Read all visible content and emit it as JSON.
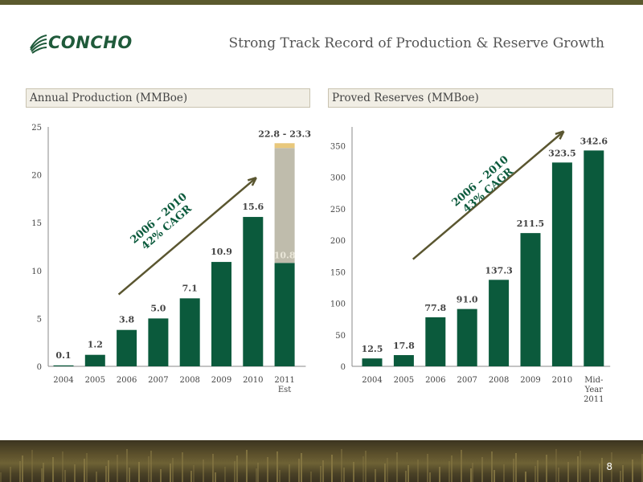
{
  "header": {
    "logo_text": "CONCHO",
    "title": "Strong Track Record of Production & Reserve Growth"
  },
  "page_number": "8",
  "colors": {
    "bar": "#0b5a3c",
    "top_range": "#e8c87c",
    "range_bar": "#bfbcac",
    "arrow": "#5a5630",
    "panel_head_bg": "#f1eee5"
  },
  "chart_data": [
    {
      "type": "bar",
      "title": "Annual Production (MMBoe)",
      "categories": [
        "2004",
        "2005",
        "2006",
        "2007",
        "2008",
        "2009",
        "2010",
        "2011 Est"
      ],
      "category_lines": [
        [
          "2004"
        ],
        [
          "2005"
        ],
        [
          "2006"
        ],
        [
          "2007"
        ],
        [
          "2008"
        ],
        [
          "2009"
        ],
        [
          "2010"
        ],
        [
          "2011",
          "Est"
        ]
      ],
      "values": [
        0.1,
        1.2,
        3.8,
        5.0,
        7.1,
        10.9,
        15.6,
        10.8
      ],
      "value_labels": [
        "0.1",
        "1.2",
        "3.8",
        "5.0",
        "7.1",
        "10.9",
        "15.6",
        "10.8"
      ],
      "range_top": {
        "category": "2011 Est",
        "low": 22.8,
        "high": 23.3,
        "label": "22.8 - 23.3"
      },
      "ylim": [
        0,
        25
      ],
      "yticks": [
        0,
        5,
        10,
        15,
        20,
        25
      ],
      "annotation": {
        "lines": [
          "2006 – 2010",
          "42% CAGR"
        ]
      },
      "grid": false
    },
    {
      "type": "bar",
      "title": "Proved Reserves (MMBoe)",
      "categories": [
        "2004",
        "2005",
        "2006",
        "2007",
        "2008",
        "2009",
        "2010",
        "Mid-Year 2011"
      ],
      "category_lines": [
        [
          "2004"
        ],
        [
          "2005"
        ],
        [
          "2006"
        ],
        [
          "2007"
        ],
        [
          "2008"
        ],
        [
          "2009"
        ],
        [
          "2010"
        ],
        [
          "Mid-",
          "Year",
          "2011"
        ]
      ],
      "values": [
        12.5,
        17.8,
        77.8,
        91.0,
        137.3,
        211.5,
        323.5,
        342.6
      ],
      "value_labels": [
        "12.5",
        "17.8",
        "77.8",
        "91.0",
        "137.3",
        "211.5",
        "323.5",
        "342.6"
      ],
      "ylim": [
        0,
        380
      ],
      "yticks": [
        0,
        50,
        100,
        150,
        200,
        250,
        300,
        350
      ],
      "annotation": {
        "lines": [
          "2006 – 2010",
          "43% CAGR"
        ]
      },
      "grid": false
    }
  ]
}
